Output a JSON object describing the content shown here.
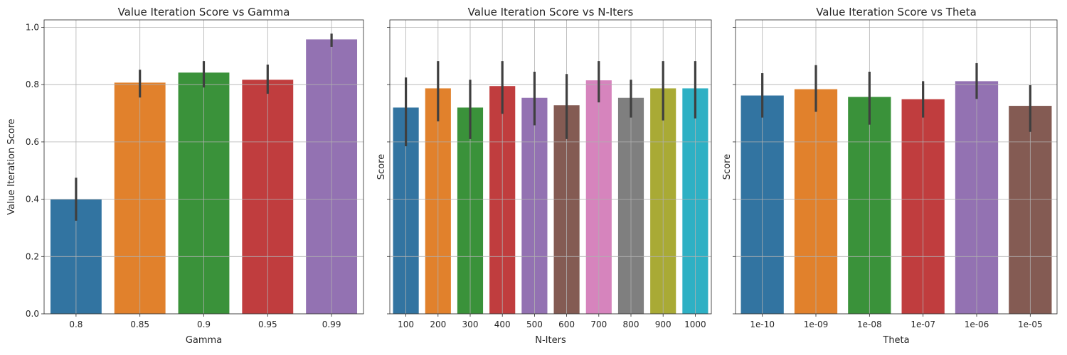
{
  "colors": {
    "palette": [
      "#3274a1",
      "#e1812c",
      "#3a923a",
      "#c03d3e",
      "#9372b2",
      "#845b53",
      "#d684bd",
      "#7f7f7f",
      "#a9aa35",
      "#2eb0c4"
    ],
    "error_bar": "#3f3f3f",
    "grid": "#b0b0b0"
  },
  "chart_data": [
    {
      "type": "bar",
      "title": "Value Iteration Score vs Gamma",
      "xlabel": "Gamma",
      "ylabel": "Value Iteration Score",
      "categories": [
        "0.8",
        "0.85",
        "0.9",
        "0.95",
        "0.99"
      ],
      "values": [
        0.4,
        0.807,
        0.842,
        0.817,
        0.958
      ],
      "error_low": [
        0.325,
        0.755,
        0.79,
        0.768,
        0.932
      ],
      "error_high": [
        0.475,
        0.852,
        0.882,
        0.87,
        0.978
      ],
      "ylim": [
        0,
        1.026
      ],
      "yticks": [
        "0.0",
        "0.2",
        "0.4",
        "0.6",
        "0.8",
        "1.0"
      ],
      "grid": true
    },
    {
      "type": "bar",
      "title": "Value Iteration Score vs N-Iters",
      "xlabel": "N-Iters",
      "ylabel": "Score",
      "categories": [
        "100",
        "200",
        "300",
        "400",
        "500",
        "600",
        "700",
        "800",
        "900",
        "1000"
      ],
      "values": [
        0.72,
        0.787,
        0.72,
        0.795,
        0.754,
        0.728,
        0.815,
        0.754,
        0.787,
        0.787
      ],
      "error_low": [
        0.585,
        0.672,
        0.61,
        0.698,
        0.658,
        0.61,
        0.738,
        0.685,
        0.675,
        0.682
      ],
      "error_high": [
        0.825,
        0.882,
        0.817,
        0.882,
        0.845,
        0.837,
        0.882,
        0.817,
        0.882,
        0.882
      ],
      "ylim": [
        0,
        1.026
      ],
      "grid": true
    },
    {
      "type": "bar",
      "title": "Value Iteration Score vs Theta",
      "xlabel": "Theta",
      "ylabel": "Score",
      "categories": [
        "1e-10",
        "1e-09",
        "1e-08",
        "1e-07",
        "1e-06",
        "1e-05"
      ],
      "values": [
        0.762,
        0.784,
        0.757,
        0.749,
        0.812,
        0.726
      ],
      "error_low": [
        0.685,
        0.705,
        0.66,
        0.685,
        0.75,
        0.635
      ],
      "error_high": [
        0.84,
        0.868,
        0.845,
        0.812,
        0.875,
        0.798
      ],
      "ylim": [
        0,
        1.026
      ],
      "grid": true
    }
  ]
}
